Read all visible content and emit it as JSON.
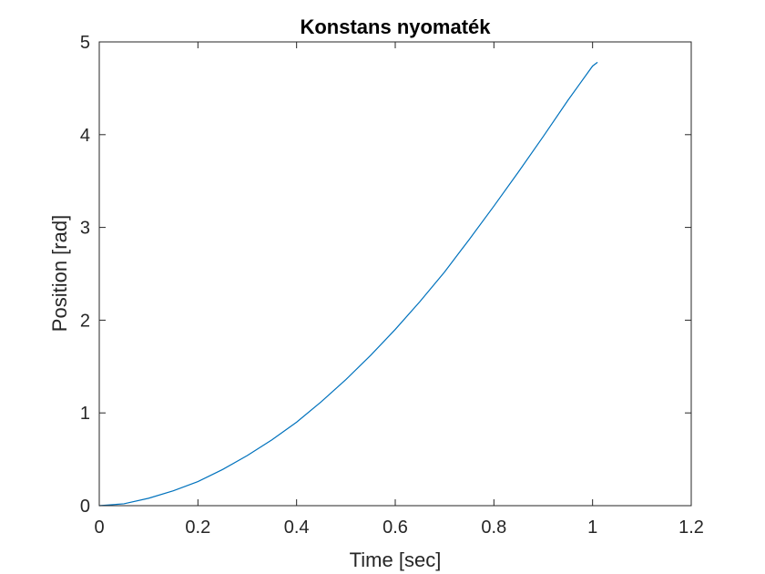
{
  "chart_data": {
    "type": "line",
    "title": "Konstans nyomaték",
    "xlabel": "Time [sec]",
    "ylabel": "Position [rad]",
    "xlim": [
      0,
      1.2
    ],
    "ylim": [
      0,
      5
    ],
    "xticks": [
      0,
      0.2,
      0.4,
      0.6,
      0.8,
      1,
      1.2
    ],
    "xtick_labels": [
      "0",
      "0.2",
      "0.4",
      "0.6",
      "0.8",
      "1",
      "1.2"
    ],
    "yticks": [
      0,
      1,
      2,
      3,
      4,
      5
    ],
    "ytick_labels": [
      "0",
      "1",
      "2",
      "3",
      "4",
      "5"
    ],
    "grid": false,
    "line_color": "#0072BD",
    "series": [
      {
        "x": [
          0,
          0.05,
          0.1,
          0.15,
          0.2,
          0.25,
          0.3,
          0.35,
          0.4,
          0.45,
          0.5,
          0.55,
          0.6,
          0.65,
          0.7,
          0.75,
          0.8,
          0.85,
          0.9,
          0.95,
          1.0,
          1.01
        ],
        "y": [
          0,
          0.02,
          0.08,
          0.16,
          0.26,
          0.39,
          0.54,
          0.71,
          0.9,
          1.12,
          1.36,
          1.62,
          1.9,
          2.2,
          2.52,
          2.87,
          3.23,
          3.6,
          3.98,
          4.37,
          4.74,
          4.78
        ]
      }
    ]
  }
}
